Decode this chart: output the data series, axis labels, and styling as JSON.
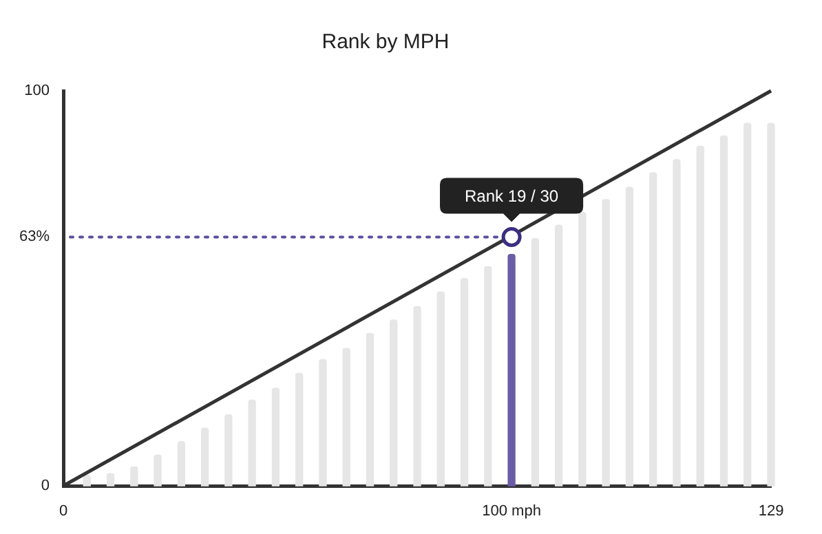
{
  "chart_data": {
    "type": "bar",
    "title": "Rank by MPH",
    "categories": [
      "0",
      null,
      null,
      null,
      null,
      null,
      null,
      null,
      null,
      null,
      null,
      null,
      null,
      null,
      null,
      null,
      null,
      null,
      null,
      "100 mph",
      null,
      null,
      null,
      null,
      null,
      null,
      null,
      null,
      null,
      null,
      "129"
    ],
    "ylim": [
      0,
      100
    ],
    "yticks": [
      0,
      {
        "value": 63,
        "label": "63%"
      },
      100
    ],
    "grid": false,
    "legend": false,
    "series": [
      {
        "values": [
          null,
          2.7,
          3.1,
          4.8,
          7.8,
          11.2,
          14.6,
          18,
          21.7,
          24.7,
          28.5,
          32,
          34.8,
          38.6,
          42,
          45.4,
          49.1,
          52.5,
          55.5,
          58.6,
          62.6,
          66,
          69.2,
          72.5,
          75.6,
          79.3,
          82.6,
          86,
          88.6,
          91.8,
          91.8
        ],
        "colors": [
          "#e6e6e6",
          "#e6e6e6",
          "#e6e6e6",
          "#e6e6e6",
          "#e6e6e6",
          "#e6e6e6",
          "#e6e6e6",
          "#e6e6e6",
          "#e6e6e6",
          "#e6e6e6",
          "#e6e6e6",
          "#e6e6e6",
          "#e6e6e6",
          "#e6e6e6",
          "#e6e6e6",
          "#e6e6e6",
          "#e6e6e6",
          "#e6e6e6",
          "#e6e6e6",
          "#6b5ca5",
          "#e6e6e6",
          "#e6e6e6",
          "#e6e6e6",
          "#e6e6e6",
          "#e6e6e6",
          "#e6e6e6",
          "#e6e6e6",
          "#e6e6e6",
          "#e6e6e6",
          "#e6e6e6",
          "#e6e6e6"
        ]
      },
      {
        "type": "line",
        "x": [
          "0",
          "129"
        ],
        "values": [
          0,
          100
        ],
        "color": "#333333",
        "marker": "none"
      },
      {
        "type": "scatter",
        "x": [
          "100 mph"
        ],
        "values": [
          63
        ],
        "color": "#3a2f80",
        "marker": "circle"
      }
    ],
    "ref_lines": [
      {
        "axis": "y",
        "value": 63,
        "color": "#5b4f9e",
        "line_style": "dotted"
      }
    ],
    "annotations": [
      {
        "text": "Rank 19 / 30",
        "x": "100 mph",
        "y": 63
      }
    ]
  }
}
